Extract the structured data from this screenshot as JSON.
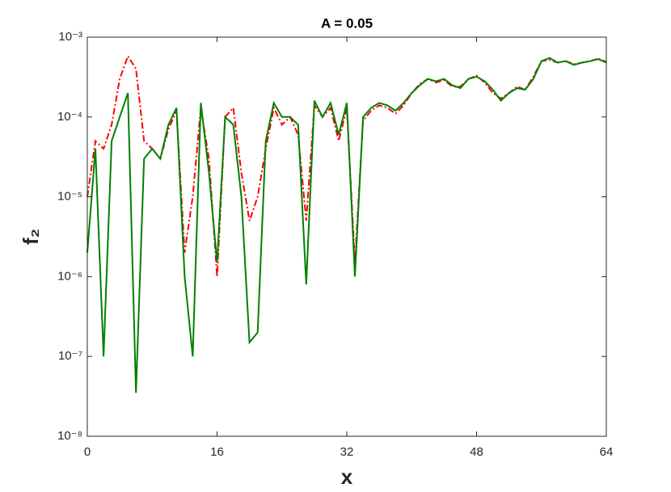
{
  "chart_data": {
    "type": "line",
    "title": "A = 0.05",
    "xlabel": "x",
    "ylabel": "f₂",
    "log_y": true,
    "xlim": [
      0,
      64
    ],
    "xticks": [
      0,
      16,
      32,
      48,
      64
    ],
    "ylim": [
      1e-08,
      0.001
    ],
    "yticks": [
      {
        "value": 1e-08,
        "label": "10⁻⁸"
      },
      {
        "value": 1e-07,
        "label": "10⁻⁷"
      },
      {
        "value": 1e-06,
        "label": "10⁻⁶"
      },
      {
        "value": 1e-05,
        "label": "10⁻⁵"
      },
      {
        "value": 0.0001,
        "label": "10⁻⁴"
      },
      {
        "value": 0.001,
        "label": "10⁻³"
      }
    ],
    "x": [
      0,
      1,
      2,
      3,
      4,
      5,
      6,
      7,
      8,
      9,
      10,
      11,
      12,
      13,
      14,
      15,
      16,
      17,
      18,
      19,
      20,
      21,
      22,
      23,
      24,
      25,
      26,
      27,
      28,
      29,
      30,
      31,
      32,
      33,
      34,
      35,
      36,
      37,
      38,
      39,
      40,
      41,
      42,
      43,
      44,
      45,
      46,
      47,
      48,
      49,
      50,
      51,
      52,
      53,
      54,
      55,
      56,
      57,
      58,
      59,
      60,
      61,
      62,
      63,
      64
    ],
    "series": [
      {
        "name": "red",
        "color": "#ff0000",
        "dash": "8,3,2,3",
        "values": [
          1e-05,
          5e-05,
          4e-05,
          8e-05,
          0.0003,
          0.00058,
          0.0004,
          5e-05,
          4e-05,
          3e-05,
          7e-05,
          0.00012,
          2e-06,
          1e-05,
          0.00013,
          3e-05,
          1e-06,
          0.0001,
          0.00013,
          2e-05,
          5e-06,
          1e-05,
          4e-05,
          0.00013,
          8e-05,
          0.0001,
          6e-05,
          5e-06,
          0.00014,
          0.0001,
          0.00013,
          5e-05,
          0.00013,
          1.5e-06,
          9e-05,
          0.00012,
          0.00014,
          0.00013,
          0.00011,
          0.00014,
          0.0002,
          0.00026,
          0.0003,
          0.00027,
          0.00029,
          0.00024,
          0.00024,
          0.0003,
          0.00033,
          0.00027,
          0.0002,
          0.00017,
          0.0002,
          0.00024,
          0.00022,
          0.00032,
          0.0005,
          0.00052,
          0.00048,
          0.0005,
          0.00046,
          0.00048,
          0.0005,
          0.00054,
          0.00049
        ]
      },
      {
        "name": "green",
        "color": "#008000",
        "dash": "",
        "values": [
          2e-06,
          4e-05,
          1e-07,
          5e-05,
          0.0001,
          0.0002,
          3.5e-08,
          3e-05,
          4e-05,
          3e-05,
          8e-05,
          0.00013,
          1e-06,
          1e-07,
          0.00015,
          2e-05,
          1.5e-06,
          0.0001,
          8e-05,
          1e-05,
          1.5e-07,
          2e-07,
          5e-05,
          0.00015,
          0.0001,
          0.0001,
          8e-05,
          8e-07,
          0.00016,
          0.0001,
          0.00015,
          6e-05,
          0.00015,
          1e-06,
          0.0001,
          0.00013,
          0.00015,
          0.00014,
          0.00012,
          0.00015,
          0.0002,
          0.00025,
          0.0003,
          0.00028,
          0.0003,
          0.00025,
          0.00023,
          0.0003,
          0.00032,
          0.00028,
          0.00022,
          0.00016,
          0.0002,
          0.00023,
          0.00022,
          0.0003,
          0.0005,
          0.00055,
          0.00048,
          0.0005,
          0.00045,
          0.00048,
          0.0005,
          0.00053,
          0.00048
        ]
      }
    ]
  }
}
